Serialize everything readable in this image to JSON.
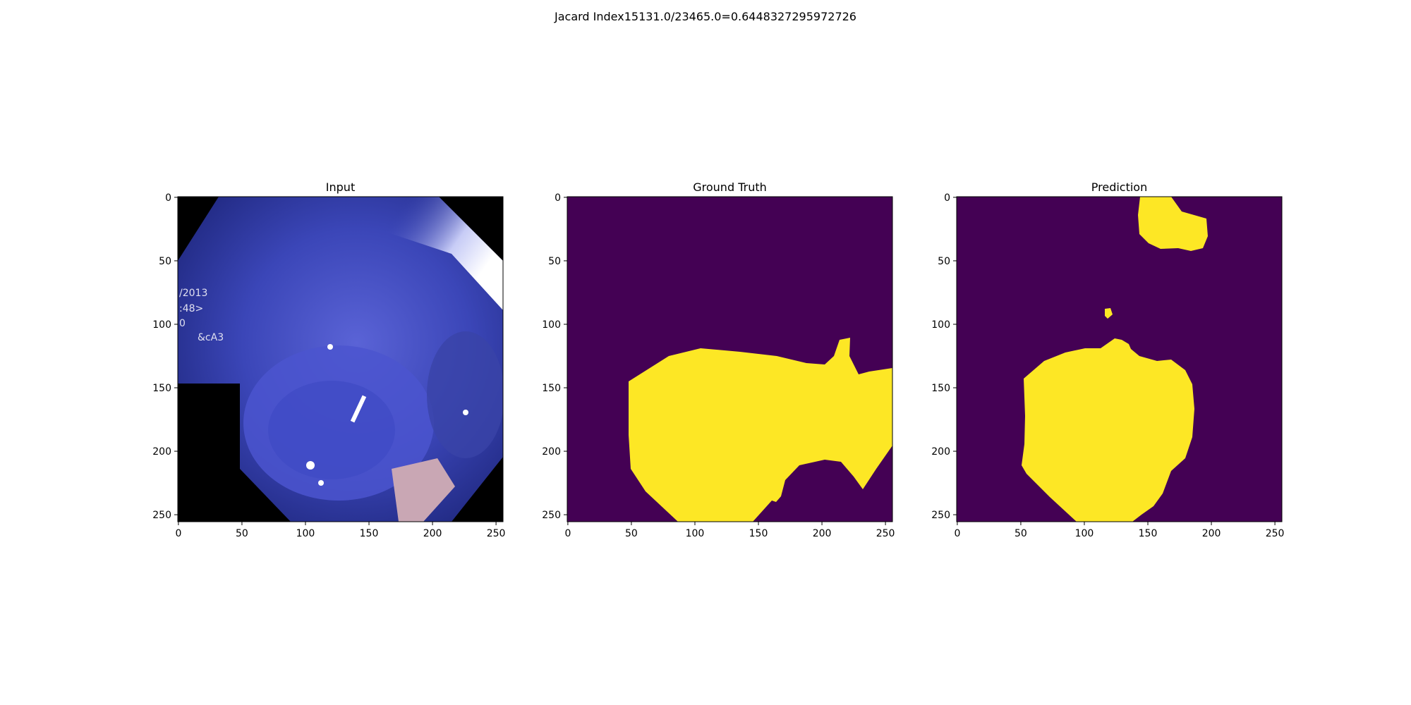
{
  "figure": {
    "title": "Jacard Index15131.0/23465.0=0.6448327295972726"
  },
  "panels": [
    {
      "id": "input",
      "title": "Input",
      "xticks": [
        "0",
        "50",
        "100",
        "150",
        "200",
        "250"
      ],
      "yticks": [
        "0",
        "50",
        "100",
        "150",
        "200",
        "250"
      ]
    },
    {
      "id": "ground-truth",
      "title": "Ground Truth",
      "xticks": [
        "0",
        "50",
        "100",
        "150",
        "200",
        "250"
      ],
      "yticks": [
        "0",
        "50",
        "100",
        "150",
        "200",
        "250"
      ]
    },
    {
      "id": "prediction",
      "title": "Prediction",
      "xticks": [
        "0",
        "50",
        "100",
        "150",
        "200",
        "250"
      ],
      "yticks": [
        "0",
        "50",
        "100",
        "150",
        "200",
        "250"
      ]
    }
  ],
  "overlay_text": {
    "line1": "/2013",
    "line2": ":48>",
    "line3": "0",
    "line4": "&cA3"
  },
  "colors": {
    "background_mask": "#440154",
    "foreground_mask": "#fde725",
    "image_dark": "#000000"
  }
}
